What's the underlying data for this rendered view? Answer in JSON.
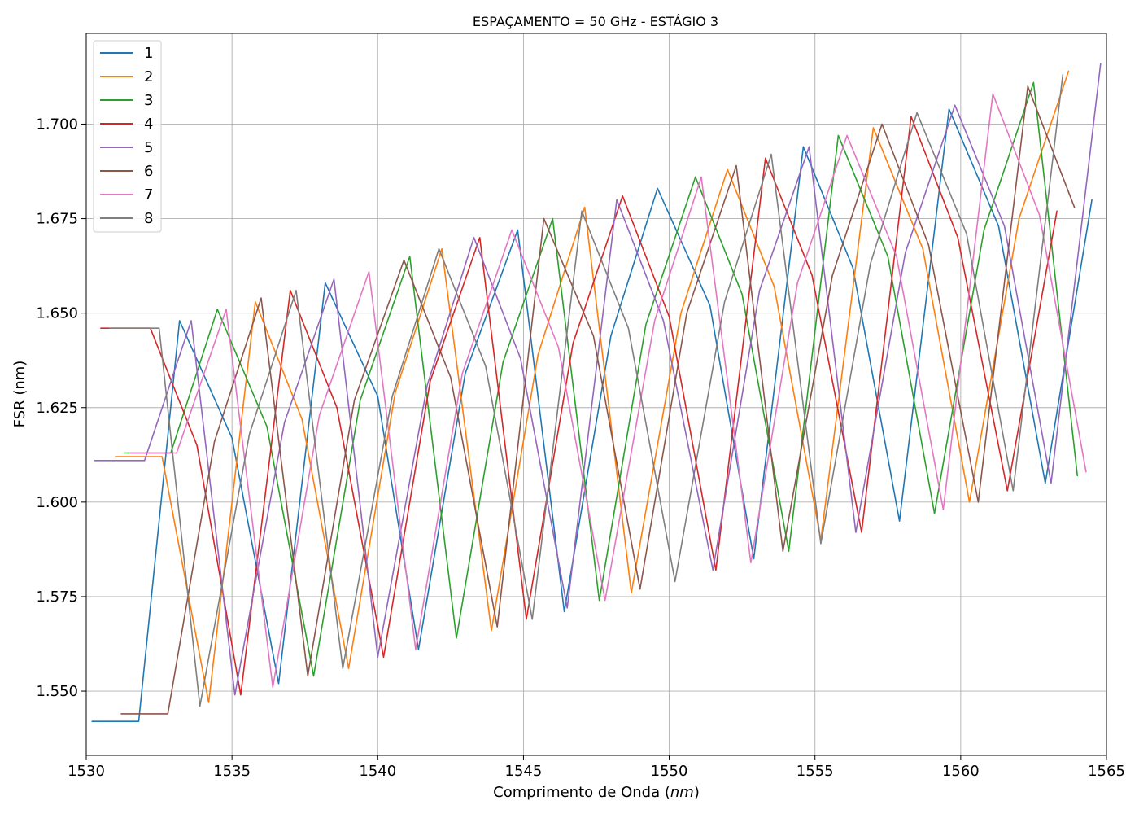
{
  "chart_data": {
    "type": "line",
    "title": "ESPAÇAMENTO = 50 GHz - ESTÁGIO 3",
    "xlabel": "Comprimento de Onda",
    "xlabel_unit": "nm",
    "ylabel": "FSR (nm)",
    "xlim": [
      1530,
      1565
    ],
    "ylim": [
      1.533,
      1.724
    ],
    "xticks": [
      1530,
      1535,
      1540,
      1545,
      1550,
      1555,
      1560,
      1565
    ],
    "xtick_labels": [
      "1530",
      "1535",
      "1540",
      "1545",
      "1550",
      "1555",
      "1560",
      "1565"
    ],
    "yticks": [
      1.55,
      1.575,
      1.6,
      1.625,
      1.65,
      1.675,
      1.7
    ],
    "ytick_labels": [
      "1.550",
      "1.575",
      "1.600",
      "1.625",
      "1.650",
      "1.675",
      "1.700"
    ],
    "grid": true,
    "legend_position": "top-left",
    "series": [
      {
        "name": "1",
        "color": "#1f77b4",
        "points": [
          [
            1530.2,
            1.542
          ],
          [
            1531.8,
            1.542
          ],
          [
            1533.2,
            1.648
          ],
          [
            1535.0,
            1.617
          ],
          [
            1536.6,
            1.552
          ],
          [
            1538.2,
            1.658
          ],
          [
            1540.0,
            1.628
          ],
          [
            1541.4,
            1.561
          ],
          [
            1543.0,
            1.634
          ],
          [
            1544.8,
            1.672
          ],
          [
            1546.4,
            1.571
          ],
          [
            1548.0,
            1.644
          ],
          [
            1549.6,
            1.683
          ],
          [
            1551.4,
            1.652
          ],
          [
            1552.9,
            1.585
          ],
          [
            1554.6,
            1.694
          ],
          [
            1556.3,
            1.662
          ],
          [
            1557.9,
            1.595
          ],
          [
            1559.6,
            1.704
          ],
          [
            1561.3,
            1.673
          ],
          [
            1562.9,
            1.605
          ],
          [
            1564.5,
            1.68
          ]
        ]
      },
      {
        "name": "2",
        "color": "#ff7f0e",
        "points": [
          [
            1531.0,
            1.612
          ],
          [
            1532.6,
            1.612
          ],
          [
            1534.2,
            1.547
          ],
          [
            1535.8,
            1.653
          ],
          [
            1537.4,
            1.622
          ],
          [
            1539.0,
            1.556
          ],
          [
            1540.6,
            1.629
          ],
          [
            1542.2,
            1.667
          ],
          [
            1543.9,
            1.566
          ],
          [
            1545.5,
            1.639
          ],
          [
            1547.1,
            1.678
          ],
          [
            1548.7,
            1.576
          ],
          [
            1550.4,
            1.65
          ],
          [
            1552.0,
            1.688
          ],
          [
            1553.6,
            1.657
          ],
          [
            1555.2,
            1.59
          ],
          [
            1557.0,
            1.699
          ],
          [
            1558.7,
            1.667
          ],
          [
            1560.3,
            1.6
          ],
          [
            1562.0,
            1.675
          ],
          [
            1563.7,
            1.714
          ]
        ]
      },
      {
        "name": "3",
        "color": "#2ca02c",
        "points": [
          [
            1531.3,
            1.613
          ],
          [
            1532.9,
            1.613
          ],
          [
            1534.5,
            1.651
          ],
          [
            1536.2,
            1.62
          ],
          [
            1537.8,
            1.554
          ],
          [
            1539.4,
            1.627
          ],
          [
            1541.1,
            1.665
          ],
          [
            1542.7,
            1.564
          ],
          [
            1544.3,
            1.637
          ],
          [
            1546.0,
            1.675
          ],
          [
            1547.6,
            1.574
          ],
          [
            1549.2,
            1.647
          ],
          [
            1550.9,
            1.686
          ],
          [
            1552.5,
            1.655
          ],
          [
            1554.1,
            1.587
          ],
          [
            1555.8,
            1.697
          ],
          [
            1557.5,
            1.665
          ],
          [
            1559.1,
            1.597
          ],
          [
            1560.8,
            1.672
          ],
          [
            1562.5,
            1.711
          ],
          [
            1564.0,
            1.607
          ]
        ]
      },
      {
        "name": "4",
        "color": "#d62728",
        "points": [
          [
            1530.5,
            1.646
          ],
          [
            1532.2,
            1.646
          ],
          [
            1533.8,
            1.615
          ],
          [
            1535.3,
            1.549
          ],
          [
            1537.0,
            1.656
          ],
          [
            1538.6,
            1.625
          ],
          [
            1540.2,
            1.559
          ],
          [
            1541.8,
            1.632
          ],
          [
            1543.5,
            1.67
          ],
          [
            1545.1,
            1.569
          ],
          [
            1546.7,
            1.642
          ],
          [
            1548.4,
            1.681
          ],
          [
            1550.0,
            1.649
          ],
          [
            1551.6,
            1.582
          ],
          [
            1553.3,
            1.691
          ],
          [
            1554.9,
            1.66
          ],
          [
            1556.6,
            1.592
          ],
          [
            1558.3,
            1.702
          ],
          [
            1559.9,
            1.67
          ],
          [
            1561.6,
            1.603
          ],
          [
            1563.3,
            1.677
          ]
        ]
      },
      {
        "name": "5",
        "color": "#9467bd",
        "points": [
          [
            1530.3,
            1.611
          ],
          [
            1532.0,
            1.611
          ],
          [
            1533.6,
            1.648
          ],
          [
            1535.1,
            1.549
          ],
          [
            1536.8,
            1.621
          ],
          [
            1538.5,
            1.659
          ],
          [
            1540.0,
            1.559
          ],
          [
            1541.7,
            1.631
          ],
          [
            1543.3,
            1.67
          ],
          [
            1544.9,
            1.638
          ],
          [
            1546.5,
            1.572
          ],
          [
            1548.2,
            1.68
          ],
          [
            1549.8,
            1.648
          ],
          [
            1551.5,
            1.582
          ],
          [
            1553.1,
            1.656
          ],
          [
            1554.8,
            1.694
          ],
          [
            1556.4,
            1.592
          ],
          [
            1558.1,
            1.666
          ],
          [
            1559.8,
            1.705
          ],
          [
            1561.5,
            1.673
          ],
          [
            1563.1,
            1.605
          ],
          [
            1564.8,
            1.716
          ]
        ]
      },
      {
        "name": "6",
        "color": "#8c564b",
        "points": [
          [
            1531.2,
            1.544
          ],
          [
            1532.8,
            1.544
          ],
          [
            1534.4,
            1.616
          ],
          [
            1536.0,
            1.654
          ],
          [
            1537.6,
            1.554
          ],
          [
            1539.2,
            1.627
          ],
          [
            1540.9,
            1.664
          ],
          [
            1542.5,
            1.633
          ],
          [
            1544.1,
            1.567
          ],
          [
            1545.7,
            1.675
          ],
          [
            1547.4,
            1.644
          ],
          [
            1549.0,
            1.577
          ],
          [
            1550.6,
            1.65
          ],
          [
            1552.3,
            1.689
          ],
          [
            1553.9,
            1.587
          ],
          [
            1555.6,
            1.66
          ],
          [
            1557.3,
            1.7
          ],
          [
            1558.9,
            1.668
          ],
          [
            1560.6,
            1.6
          ],
          [
            1562.3,
            1.71
          ],
          [
            1563.9,
            1.678
          ]
        ]
      },
      {
        "name": "7",
        "color": "#e377c2",
        "points": [
          [
            1531.5,
            1.613
          ],
          [
            1533.1,
            1.613
          ],
          [
            1534.8,
            1.651
          ],
          [
            1536.4,
            1.551
          ],
          [
            1538.0,
            1.623
          ],
          [
            1539.7,
            1.661
          ],
          [
            1541.3,
            1.561
          ],
          [
            1542.9,
            1.634
          ],
          [
            1544.6,
            1.672
          ],
          [
            1546.2,
            1.641
          ],
          [
            1547.8,
            1.574
          ],
          [
            1549.5,
            1.648
          ],
          [
            1551.1,
            1.686
          ],
          [
            1552.8,
            1.584
          ],
          [
            1554.4,
            1.658
          ],
          [
            1556.1,
            1.697
          ],
          [
            1557.8,
            1.665
          ],
          [
            1559.4,
            1.598
          ],
          [
            1561.1,
            1.708
          ],
          [
            1562.7,
            1.676
          ],
          [
            1564.3,
            1.608
          ]
        ]
      },
      {
        "name": "8",
        "color": "#7f7f7f",
        "points": [
          [
            1530.8,
            1.646
          ],
          [
            1532.5,
            1.646
          ],
          [
            1533.9,
            1.546
          ],
          [
            1535.6,
            1.618
          ],
          [
            1537.2,
            1.656
          ],
          [
            1538.8,
            1.556
          ],
          [
            1540.5,
            1.628
          ],
          [
            1542.1,
            1.667
          ],
          [
            1543.7,
            1.636
          ],
          [
            1545.3,
            1.569
          ],
          [
            1547.0,
            1.677
          ],
          [
            1548.6,
            1.646
          ],
          [
            1550.2,
            1.579
          ],
          [
            1551.9,
            1.653
          ],
          [
            1553.5,
            1.692
          ],
          [
            1555.2,
            1.589
          ],
          [
            1556.9,
            1.663
          ],
          [
            1558.5,
            1.703
          ],
          [
            1560.2,
            1.671
          ],
          [
            1561.8,
            1.603
          ],
          [
            1563.5,
            1.713
          ]
        ]
      }
    ]
  }
}
